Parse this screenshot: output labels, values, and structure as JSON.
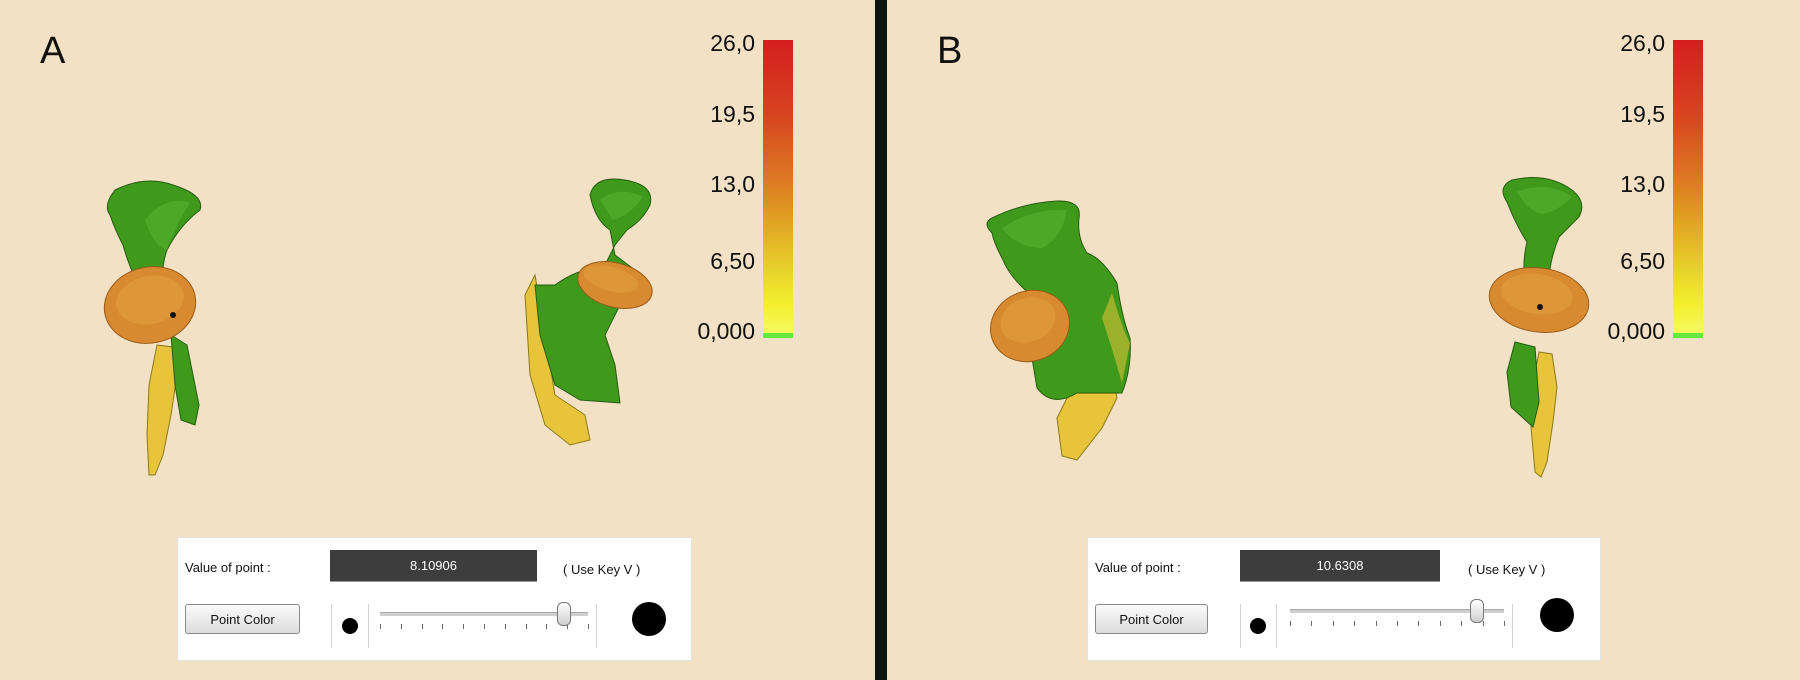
{
  "panels": [
    {
      "letter": "A",
      "scale": {
        "labels": [
          "26,0",
          "19,5",
          "13,0",
          "6,50",
          "0,000"
        ]
      },
      "control": {
        "value_label": "Value of point :",
        "value": "8.10906",
        "hint": "( Use Key V )",
        "button_label": "Point Color",
        "slider_fraction": 0.88
      }
    },
    {
      "letter": "B",
      "scale": {
        "labels": [
          "26,0",
          "19,5",
          "13,0",
          "6,50",
          "0,000"
        ]
      },
      "control": {
        "value_label": "Value of point :",
        "value": "10.6308",
        "hint": "( Use Key V )",
        "button_label": "Point Color",
        "slider_fraction": 0.87
      }
    }
  ],
  "colors": {
    "background": "#f3e1c5",
    "divider": "#0d140d",
    "bone_green": "#3f9a1c",
    "bone_orange": "#d88a30",
    "bone_yellow": "#e7c43a",
    "value_field": "#3d3d3d"
  }
}
